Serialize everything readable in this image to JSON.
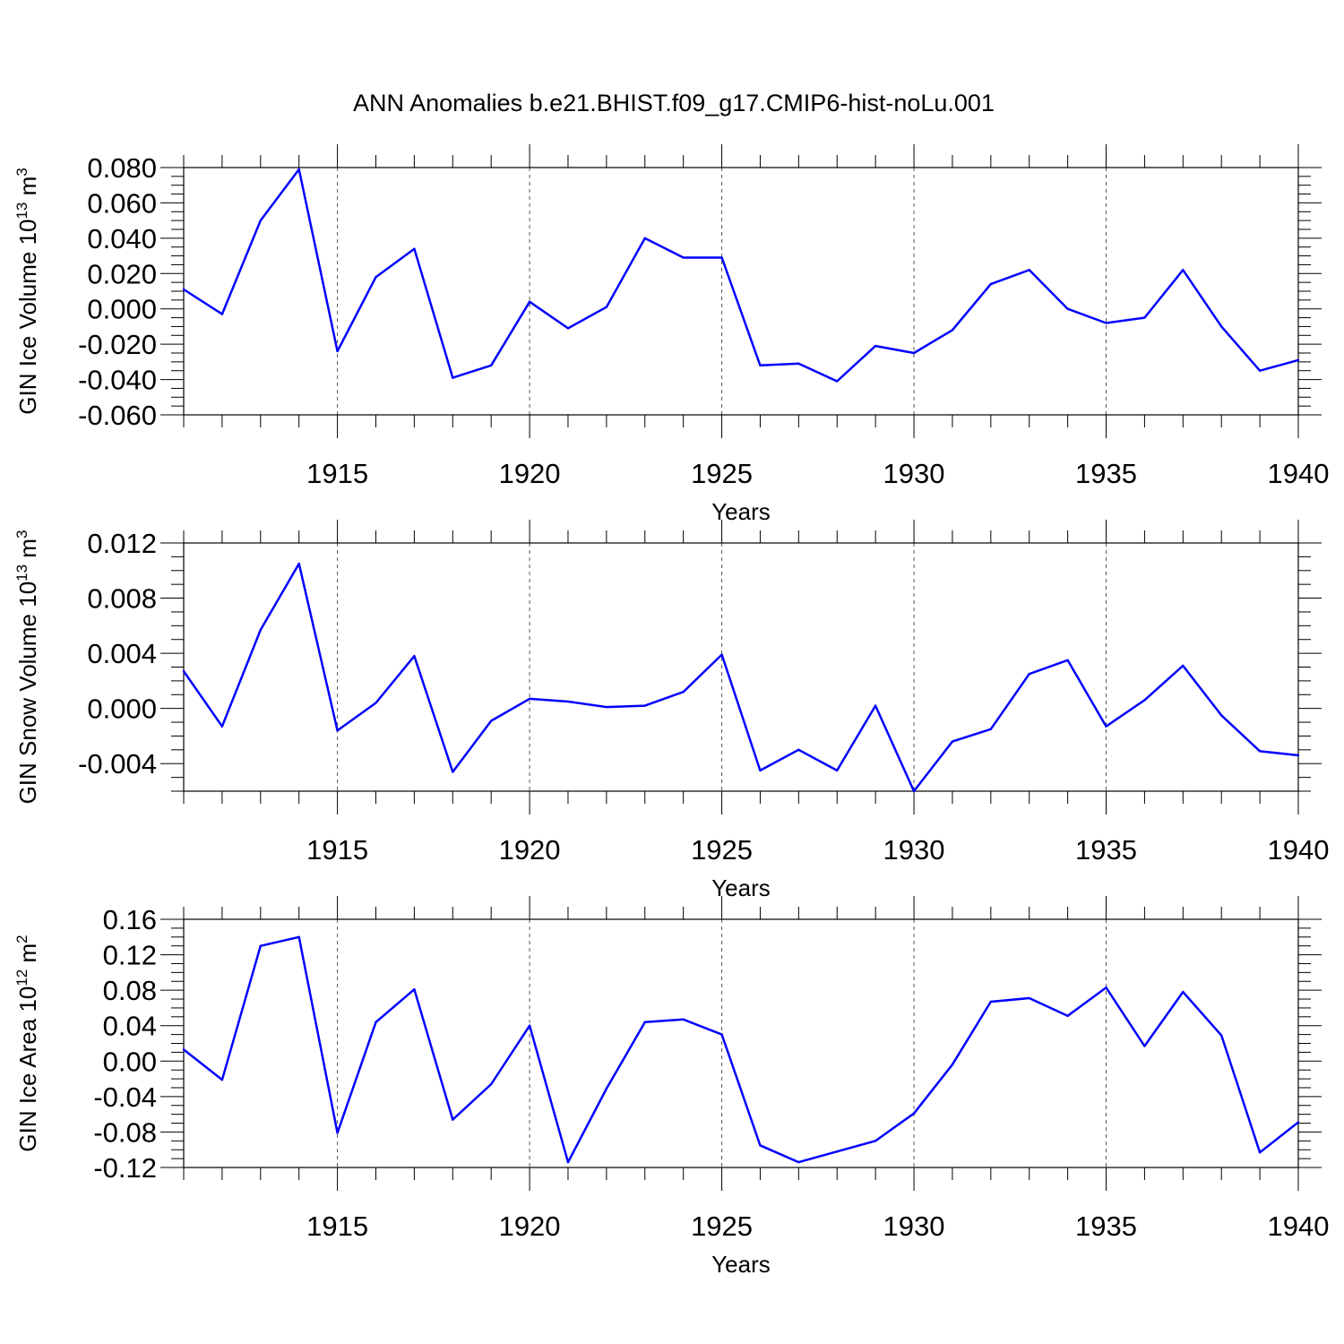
{
  "title": "ANN Anomalies b.e21.BHIST.f09_g17.CMIP6-hist-noLu.001",
  "line_color": "#0000ff",
  "chart_data": [
    {
      "type": "line",
      "ylabel_main": "GIN Ice Volume 10",
      "ylabel_exp": "13",
      "ylabel_unit": " m",
      "ylabel_unit_exp": "3",
      "xlabel": "Years",
      "xlim": [
        1911,
        1940
      ],
      "ylim": [
        -0.06,
        0.08
      ],
      "yticks": [
        {
          "v": 0.08,
          "label": "0.080"
        },
        {
          "v": 0.06,
          "label": "0.060"
        },
        {
          "v": 0.04,
          "label": "0.040"
        },
        {
          "v": 0.02,
          "label": "0.020"
        },
        {
          "v": 0.0,
          "label": "0.000"
        },
        {
          "v": -0.02,
          "label": "-0.020"
        },
        {
          "v": -0.04,
          "label": "-0.040"
        },
        {
          "v": -0.06,
          "label": "-0.060"
        }
      ],
      "yminor_step": 0.005,
      "xticks": [
        {
          "v": 1915,
          "label": "1915"
        },
        {
          "v": 1920,
          "label": "1920"
        },
        {
          "v": 1925,
          "label": "1925"
        },
        {
          "v": 1930,
          "label": "1930"
        },
        {
          "v": 1935,
          "label": "1935"
        },
        {
          "v": 1940,
          "label": "1940"
        }
      ],
      "x": [
        1911,
        1912,
        1913,
        1914,
        1915,
        1916,
        1917,
        1918,
        1919,
        1920,
        1921,
        1922,
        1923,
        1924,
        1925,
        1926,
        1927,
        1928,
        1929,
        1930,
        1931,
        1932,
        1933,
        1934,
        1935,
        1936,
        1937,
        1938,
        1939,
        1940
      ],
      "values": [
        0.011,
        -0.003,
        0.05,
        0.079,
        -0.024,
        0.018,
        0.034,
        -0.039,
        -0.032,
        0.004,
        -0.011,
        0.001,
        0.04,
        0.029,
        0.029,
        -0.032,
        -0.031,
        -0.041,
        -0.021,
        -0.025,
        -0.012,
        0.014,
        0.022,
        0.0,
        -0.008,
        -0.005,
        0.022,
        -0.01,
        -0.035,
        -0.029
      ]
    },
    {
      "type": "line",
      "ylabel_main": "GIN Snow Volume 10",
      "ylabel_exp": "13",
      "ylabel_unit": " m",
      "ylabel_unit_exp": "3",
      "xlabel": "Years",
      "xlim": [
        1911,
        1940
      ],
      "ylim": [
        -0.006,
        0.012
      ],
      "yticks": [
        {
          "v": 0.012,
          "label": "0.012"
        },
        {
          "v": 0.008,
          "label": "0.008"
        },
        {
          "v": 0.004,
          "label": "0.004"
        },
        {
          "v": 0.0,
          "label": "0.000"
        },
        {
          "v": -0.004,
          "label": "-0.004"
        }
      ],
      "yminor_step": 0.001,
      "xticks": [
        {
          "v": 1915,
          "label": "1915"
        },
        {
          "v": 1920,
          "label": "1920"
        },
        {
          "v": 1925,
          "label": "1925"
        },
        {
          "v": 1930,
          "label": "1930"
        },
        {
          "v": 1935,
          "label": "1935"
        },
        {
          "v": 1940,
          "label": "1940"
        }
      ],
      "x": [
        1911,
        1912,
        1913,
        1914,
        1915,
        1916,
        1917,
        1918,
        1919,
        1920,
        1921,
        1922,
        1923,
        1924,
        1925,
        1926,
        1927,
        1928,
        1929,
        1930,
        1931,
        1932,
        1933,
        1934,
        1935,
        1936,
        1937,
        1938,
        1939,
        1940
      ],
      "values": [
        0.0027,
        -0.0013,
        0.0057,
        0.0105,
        -0.0016,
        0.0004,
        0.0038,
        -0.0046,
        -0.0009,
        0.0007,
        0.0005,
        0.0001,
        0.0002,
        0.0012,
        0.0039,
        -0.0045,
        -0.003,
        -0.0045,
        0.0002,
        -0.006,
        -0.0024,
        -0.0015,
        0.0025,
        0.0035,
        -0.0013,
        0.0006,
        0.0031,
        -0.0005,
        -0.0031,
        -0.0034
      ]
    },
    {
      "type": "line",
      "ylabel_main": "GIN Ice Area 10",
      "ylabel_exp": "12",
      "ylabel_unit": " m",
      "ylabel_unit_exp": "2",
      "xlabel": "Years",
      "xlim": [
        1911,
        1940
      ],
      "ylim": [
        -0.12,
        0.16
      ],
      "yticks": [
        {
          "v": 0.16,
          "label": "0.16"
        },
        {
          "v": 0.12,
          "label": "0.12"
        },
        {
          "v": 0.08,
          "label": "0.08"
        },
        {
          "v": 0.04,
          "label": "0.04"
        },
        {
          "v": 0.0,
          "label": "0.00"
        },
        {
          "v": -0.04,
          "label": "-0.04"
        },
        {
          "v": -0.08,
          "label": "-0.08"
        },
        {
          "v": -0.12,
          "label": "-0.12"
        }
      ],
      "yminor_step": 0.01,
      "xticks": [
        {
          "v": 1915,
          "label": "1915"
        },
        {
          "v": 1920,
          "label": "1920"
        },
        {
          "v": 1925,
          "label": "1925"
        },
        {
          "v": 1930,
          "label": "1930"
        },
        {
          "v": 1935,
          "label": "1935"
        },
        {
          "v": 1940,
          "label": "1940"
        }
      ],
      "x": [
        1911,
        1912,
        1913,
        1914,
        1915,
        1916,
        1917,
        1918,
        1919,
        1920,
        1921,
        1922,
        1923,
        1924,
        1925,
        1926,
        1927,
        1928,
        1929,
        1930,
        1931,
        1932,
        1933,
        1934,
        1935,
        1936,
        1937,
        1938,
        1939,
        1940
      ],
      "values": [
        0.013,
        -0.021,
        0.13,
        0.14,
        -0.081,
        0.044,
        0.081,
        -0.066,
        -0.026,
        0.04,
        -0.114,
        -0.031,
        0.044,
        0.047,
        0.03,
        -0.095,
        -0.114,
        -0.102,
        -0.09,
        -0.059,
        -0.004,
        0.067,
        0.071,
        0.051,
        0.083,
        0.017,
        0.078,
        0.029,
        -0.103,
        -0.069
      ]
    }
  ]
}
